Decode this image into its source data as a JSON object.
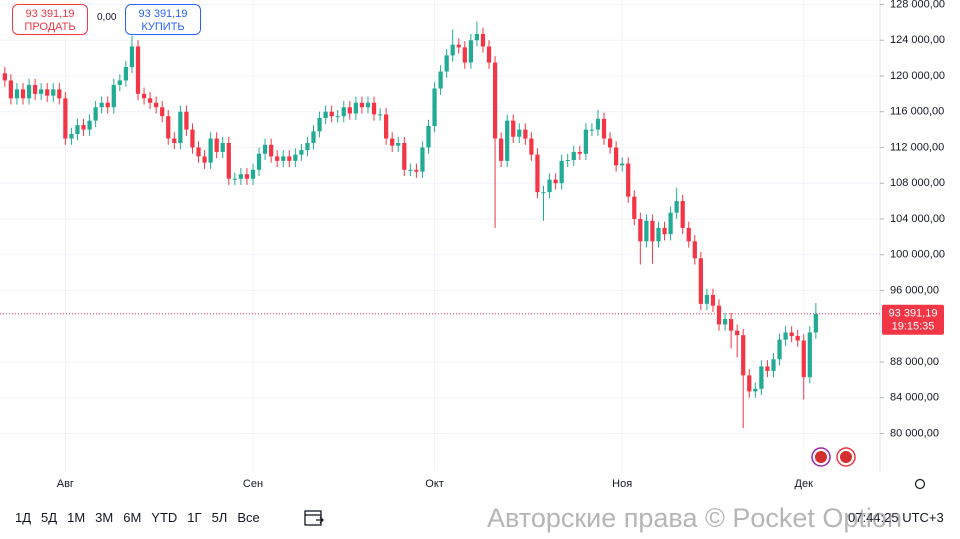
{
  "chart_data": {
    "type": "candlestick",
    "x": [
      0,
      1,
      2,
      3,
      4,
      5,
      6,
      7,
      8,
      9,
      10,
      11,
      12,
      13,
      14,
      15,
      16,
      17,
      18,
      19,
      20,
      21,
      22,
      23,
      24,
      25,
      26,
      27,
      28,
      29,
      30,
      31,
      32,
      33,
      34,
      35,
      36,
      37,
      38,
      39,
      40,
      41,
      42,
      43,
      44,
      45,
      46,
      47,
      48,
      49,
      50,
      51,
      52,
      53,
      54,
      55,
      56,
      57,
      58,
      59,
      60,
      61,
      62,
      63,
      64,
      65,
      66,
      67,
      68,
      69,
      70,
      71,
      72,
      73,
      74,
      75,
      76,
      77,
      78,
      79,
      80,
      81,
      82,
      83,
      84,
      85,
      86,
      87,
      88,
      89,
      90,
      91,
      92,
      93,
      94,
      95,
      96,
      97,
      98,
      99,
      100,
      101,
      102,
      103,
      104,
      105,
      106,
      107,
      108,
      109,
      110,
      111,
      112,
      113,
      114,
      115,
      116,
      117,
      118,
      119,
      120,
      121,
      122,
      123,
      124,
      125,
      126,
      127,
      128,
      129,
      130,
      131,
      132,
      133,
      134
    ],
    "open": [
      120300,
      119500,
      117500,
      118500,
      117500,
      119000,
      118000,
      118500,
      117800,
      118500,
      117500,
      113000,
      113500,
      114500,
      114000,
      115000,
      116500,
      117000,
      116500,
      119000,
      119500,
      121000,
      123300,
      118000,
      117500,
      117000,
      116500,
      115500,
      113000,
      112500,
      116000,
      114000,
      112000,
      111000,
      110300,
      113000,
      111500,
      112500,
      108500,
      108500,
      109000,
      108500,
      109500,
      111300,
      112300,
      111000,
      110500,
      111000,
      110500,
      111200,
      111700,
      112500,
      113800,
      115300,
      116000,
      115500,
      115500,
      116500,
      115800,
      117000,
      116500,
      117000,
      115700,
      115700,
      113000,
      112200,
      112500,
      109500,
      109500,
      109300,
      112000,
      114400,
      118600,
      120500,
      122300,
      123500,
      123200,
      121500,
      124000,
      124700,
      123300,
      121500,
      113000,
      110500,
      115000,
      113200,
      114000,
      113000,
      111200,
      107000,
      107000,
      108400,
      108000,
      110500,
      110600,
      111500,
      111300,
      114000,
      114000,
      115200,
      113000,
      112000,
      110000,
      110200,
      106500,
      104000,
      101500,
      103800,
      101500,
      103000,
      102300,
      104700,
      106000,
      103000,
      101500,
      99600,
      94500,
      95500,
      94300,
      92200,
      92800,
      91500,
      91000,
      86500,
      84700,
      85000,
      87500,
      87000,
      88300,
      90500,
      91300,
      90900,
      90400,
      86300,
      91300
    ],
    "high": [
      121000,
      120200,
      119200,
      119200,
      119700,
      119700,
      119200,
      119200,
      119200,
      119200,
      118200,
      114200,
      115200,
      115200,
      115700,
      117200,
      117700,
      117700,
      119700,
      120200,
      121700,
      124500,
      124000,
      118700,
      118200,
      117700,
      117200,
      116200,
      113700,
      116700,
      116700,
      114700,
      112700,
      111700,
      113700,
      113700,
      113200,
      113200,
      109200,
      109700,
      109700,
      110200,
      112000,
      113000,
      113000,
      111700,
      111700,
      111700,
      111900,
      112400,
      113200,
      114500,
      116000,
      116700,
      116700,
      116200,
      117200,
      117200,
      117700,
      117700,
      117700,
      117700,
      116400,
      116400,
      113700,
      113200,
      113200,
      110200,
      110200,
      112700,
      115100,
      119300,
      121200,
      123000,
      125200,
      124200,
      123900,
      124700,
      126100,
      125400,
      124000,
      122200,
      113700,
      115700,
      115700,
      114700,
      114700,
      113700,
      111900,
      107700,
      109100,
      109100,
      111200,
      111300,
      112200,
      112200,
      114700,
      114700,
      116200,
      115900,
      113700,
      112700,
      110900,
      110900,
      107200,
      104700,
      104500,
      104500,
      103700,
      103700,
      105400,
      107500,
      106700,
      103700,
      102200,
      100300,
      96200,
      96200,
      95000,
      93500,
      93500,
      92200,
      91700,
      87200,
      85700,
      88200,
      88200,
      89000,
      91200,
      92000,
      92000,
      91600,
      91100,
      92000,
      94600
    ],
    "low": [
      118800,
      116800,
      116800,
      116800,
      116800,
      117300,
      117300,
      117100,
      117100,
      116800,
      112300,
      112300,
      112800,
      113300,
      113300,
      114300,
      115800,
      115800,
      115800,
      118300,
      118800,
      120300,
      117300,
      116800,
      116300,
      115800,
      114800,
      112300,
      111800,
      111800,
      113300,
      111300,
      110300,
      109600,
      109600,
      110800,
      110800,
      107800,
      107800,
      107800,
      107800,
      107800,
      108800,
      110600,
      110300,
      109800,
      109800,
      109800,
      109800,
      110500,
      111000,
      111800,
      113100,
      114600,
      114800,
      114800,
      114800,
      115100,
      115100,
      115800,
      115800,
      115000,
      115000,
      112300,
      111500,
      111500,
      108800,
      108800,
      108600,
      108600,
      111300,
      113700,
      117900,
      119800,
      121600,
      122500,
      120800,
      120800,
      123300,
      122600,
      120800,
      103000,
      109800,
      109800,
      112500,
      112500,
      112300,
      110500,
      106300,
      103800,
      106300,
      107300,
      107300,
      109800,
      109900,
      110600,
      110600,
      113300,
      113300,
      112300,
      111300,
      109300,
      109300,
      105800,
      103300,
      98900,
      100800,
      99000,
      100800,
      101600,
      101600,
      104000,
      102300,
      100800,
      98900,
      93800,
      93800,
      93600,
      91500,
      91500,
      89500,
      88500,
      80600,
      84000,
      84000,
      84300,
      86300,
      86300,
      87600,
      89800,
      90200,
      89700,
      83800,
      85600,
      90600
    ],
    "close": [
      119500,
      117500,
      118500,
      117500,
      119000,
      118000,
      118500,
      117800,
      118500,
      117500,
      113000,
      113500,
      114500,
      114000,
      115000,
      116500,
      117000,
      116500,
      119000,
      119500,
      121000,
      123300,
      118000,
      117500,
      117000,
      116500,
      115500,
      113000,
      112500,
      116000,
      114000,
      112000,
      111000,
      110300,
      113000,
      111500,
      112500,
      108500,
      108500,
      109000,
      108500,
      109500,
      111300,
      112300,
      111000,
      110500,
      111000,
      110500,
      111200,
      111700,
      112500,
      113800,
      115300,
      116000,
      115500,
      115500,
      116500,
      115800,
      117000,
      116500,
      117000,
      115700,
      115700,
      113000,
      112200,
      112500,
      109500,
      109500,
      109300,
      112000,
      114400,
      118600,
      120500,
      122300,
      123500,
      123200,
      121500,
      124000,
      124700,
      123300,
      121500,
      113000,
      110500,
      115000,
      113200,
      114000,
      113000,
      111200,
      107000,
      107000,
      108400,
      108000,
      110500,
      110600,
      111500,
      111300,
      114000,
      114000,
      115200,
      113000,
      112000,
      110000,
      110200,
      106500,
      104000,
      101500,
      103800,
      101500,
      103000,
      102300,
      104700,
      106000,
      103000,
      101500,
      99600,
      94500,
      95500,
      94300,
      92200,
      92800,
      91500,
      91000,
      86500,
      84700,
      85000,
      87500,
      87000,
      88300,
      90500,
      91300,
      90900,
      90400,
      86300,
      91300,
      93391.19
    ],
    "up_color": "#22ab94",
    "down_color": "#f23645",
    "xlim": [
      -0.8,
      144.6
    ],
    "xticks": [
      {
        "value": 10,
        "label": "Авг"
      },
      {
        "value": 41,
        "label": "Сен"
      },
      {
        "value": 71,
        "label": "Окт"
      },
      {
        "value": 102,
        "label": "Ноя"
      },
      {
        "value": 132,
        "label": "Дек"
      }
    ],
    "ylim": [
      75800,
      128500
    ],
    "yticks": [
      {
        "value": 80000,
        "label": "80 000,00"
      },
      {
        "value": 84000,
        "label": "84 000,00"
      },
      {
        "value": 88000,
        "label": "88 000,00"
      },
      {
        "value": 96000,
        "label": "96 000,00"
      },
      {
        "value": 100000,
        "label": "100 000,00"
      },
      {
        "value": 104000,
        "label": "104 000,00"
      },
      {
        "value": 108000,
        "label": "108 000,00"
      },
      {
        "value": 112000,
        "label": "112 000,00"
      },
      {
        "value": 116000,
        "label": "116 000,00"
      },
      {
        "value": 120000,
        "label": "120 000,00"
      },
      {
        "value": 124000,
        "label": "124 000,00"
      },
      {
        "value": 128000,
        "label": "128 000,00"
      }
    ],
    "grid": true,
    "price_tag": {
      "value": 93391.19,
      "label": "93 391,19",
      "countdown": "19:15:35",
      "color": "#f23645"
    }
  },
  "trade": {
    "sell_price": "93 391,19",
    "sell_label": "ПРОДАТЬ",
    "spread": "0,00",
    "buy_price": "93 391,19",
    "buy_label": "КУПИТЬ"
  },
  "timeframes": [
    "1Д",
    "5Д",
    "1М",
    "3М",
    "6М",
    "YTD",
    "1Г",
    "5Л",
    "Все"
  ],
  "clock": "07:44:25 UTC+3",
  "watermark": "Авторские права © Pocket Option"
}
